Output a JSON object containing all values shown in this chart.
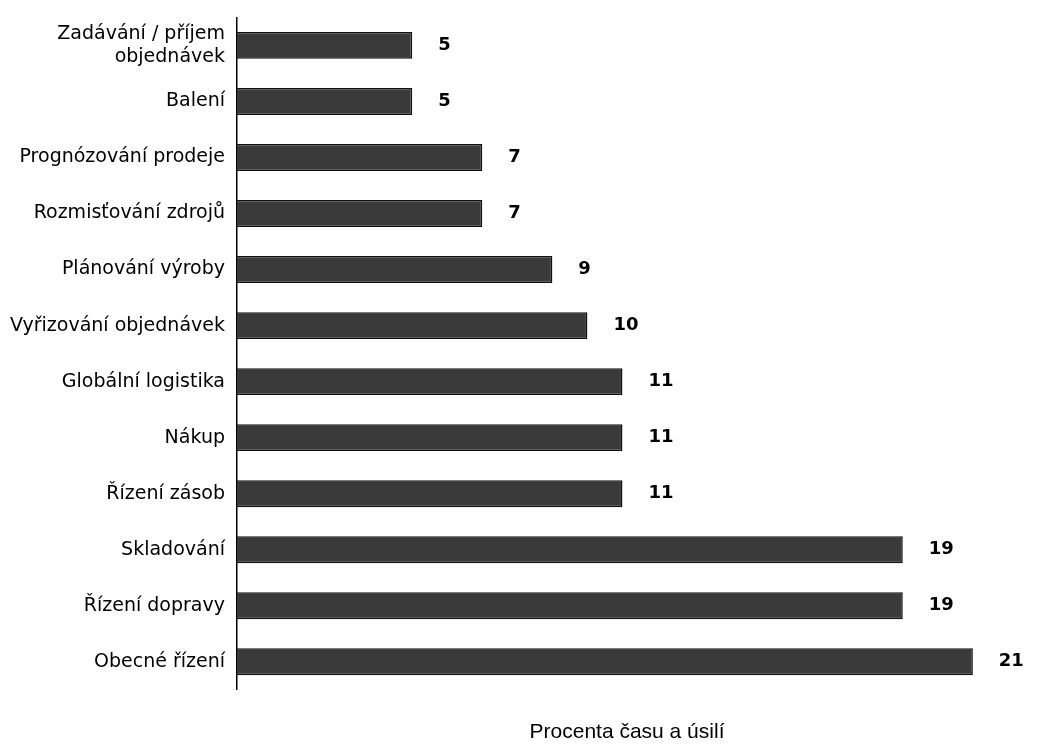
{
  "chart_data": {
    "type": "bar",
    "orientation": "horizontal",
    "xlabel": "Procenta času a úsilí",
    "categories": [
      "Zadávání / příjem objednávek",
      "Balení",
      "Prognózování prodeje",
      "Rozmisťování zdrojů",
      "Plánování výroby",
      "Vyřizování objednávek",
      "Globální logistika",
      "Nákup",
      "Řízení zásob",
      "Skladování",
      "Řízení dopravy",
      "Obecné řízení"
    ],
    "values": [
      5,
      5,
      7,
      7,
      9,
      10,
      11,
      11,
      11,
      19,
      19,
      21
    ],
    "color": "#3a3a3a",
    "data_labels": true,
    "tick_labels": "y",
    "grid": false,
    "legend": false
  }
}
